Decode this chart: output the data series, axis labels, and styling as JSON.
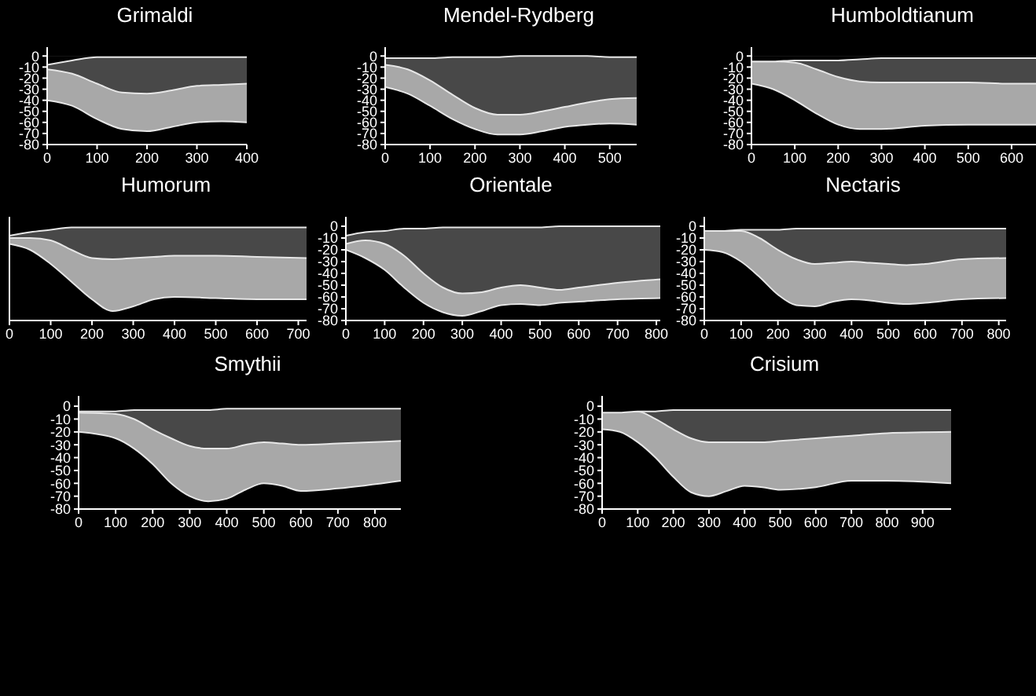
{
  "chart_data": [
    {
      "type": "area",
      "title": "Grimaldi",
      "xlim": [
        0,
        400
      ],
      "xticks": [
        0,
        100,
        200,
        300,
        400
      ],
      "ylim": [
        -80,
        8
      ],
      "yticks": [
        0,
        -10,
        -20,
        -30,
        -40,
        -50,
        -60,
        -70,
        -80
      ],
      "series": [
        {
          "color": "#a8a8a8",
          "x": [
            0,
            50,
            100,
            150,
            200,
            250,
            300,
            350,
            400
          ],
          "values": [
            -40,
            -45,
            -57,
            -66,
            -68,
            -64,
            -60,
            -59,
            -60
          ]
        },
        {
          "color": "#484848",
          "x": [
            0,
            50,
            100,
            150,
            200,
            250,
            300,
            350,
            400
          ],
          "values": [
            -12,
            -16,
            -25,
            -33,
            -34,
            -31,
            -27,
            -26,
            -25
          ]
        },
        {
          "color": "#000000",
          "x": [
            0,
            50,
            100,
            150,
            200,
            250,
            300,
            350,
            400
          ],
          "values": [
            -8,
            -4,
            -1,
            -1,
            -1,
            -1,
            -1,
            -1,
            -1
          ]
        }
      ]
    },
    {
      "type": "area",
      "title": "Mendel-Rydberg",
      "xlim": [
        0,
        560
      ],
      "xticks": [
        0,
        100,
        200,
        300,
        400,
        500
      ],
      "ylim": [
        -80,
        8
      ],
      "yticks": [
        0,
        -10,
        -20,
        -30,
        -40,
        -50,
        -60,
        -70,
        -80
      ],
      "series": [
        {
          "color": "#a8a8a8",
          "x": [
            0,
            50,
            100,
            150,
            200,
            250,
            300,
            350,
            400,
            450,
            500,
            560
          ],
          "values": [
            -28,
            -34,
            -45,
            -57,
            -66,
            -71,
            -71,
            -68,
            -64,
            -62,
            -61,
            -62
          ]
        },
        {
          "color": "#484848",
          "x": [
            0,
            50,
            100,
            150,
            200,
            250,
            300,
            350,
            400,
            450,
            500,
            560
          ],
          "values": [
            -8,
            -12,
            -22,
            -35,
            -47,
            -53,
            -53,
            -50,
            -46,
            -42,
            -39,
            -38
          ]
        },
        {
          "color": "#000000",
          "x": [
            0,
            50,
            100,
            150,
            200,
            250,
            300,
            350,
            400,
            450,
            500,
            560
          ],
          "values": [
            -2,
            -2,
            -2,
            -1,
            -1,
            -1,
            0,
            0,
            0,
            0,
            -1,
            -1
          ]
        }
      ]
    },
    {
      "type": "area",
      "title": "Humboldtianum",
      "xlim": [
        0,
        660
      ],
      "xticks": [
        0,
        100,
        200,
        300,
        400,
        500,
        600
      ],
      "ylim": [
        -80,
        8
      ],
      "yticks": [
        0,
        -10,
        -20,
        -30,
        -40,
        -50,
        -60,
        -70,
        -80
      ],
      "series": [
        {
          "color": "#a8a8a8",
          "x": [
            0,
            50,
            100,
            150,
            200,
            250,
            300,
            400,
            500,
            600,
            660
          ],
          "values": [
            -25,
            -30,
            -40,
            -52,
            -62,
            -66,
            -66,
            -63,
            -62,
            -62,
            -62
          ]
        },
        {
          "color": "#484848",
          "x": [
            0,
            50,
            100,
            150,
            200,
            250,
            300,
            400,
            500,
            600,
            660
          ],
          "values": [
            -5,
            -5,
            -6,
            -12,
            -19,
            -23,
            -24,
            -24,
            -24,
            -25,
            -25
          ]
        },
        {
          "color": "#000000",
          "x": [
            0,
            50,
            100,
            150,
            200,
            250,
            300,
            400,
            500,
            600,
            660
          ],
          "values": [
            -5,
            -5,
            -4,
            -4,
            -4,
            -3,
            -2,
            -2,
            -2,
            -2,
            -2
          ]
        }
      ]
    },
    {
      "type": "area",
      "title": "Humorum",
      "xlim": [
        0,
        720
      ],
      "xticks": [
        0,
        100,
        200,
        300,
        400,
        500,
        600,
        700
      ],
      "ylim": [
        -80,
        8
      ],
      "yticks": [
        0,
        -10,
        -20,
        -30,
        -40,
        -50,
        -60,
        -70,
        -80
      ],
      "tick_labels": "x",
      "series": [
        {
          "color": "#a8a8a8",
          "x": [
            0,
            50,
            100,
            150,
            200,
            250,
            300,
            350,
            400,
            500,
            600,
            720
          ],
          "values": [
            -15,
            -20,
            -32,
            -47,
            -62,
            -72,
            -68,
            -62,
            -60,
            -61,
            -62,
            -62
          ]
        },
        {
          "color": "#484848",
          "x": [
            0,
            50,
            100,
            150,
            200,
            250,
            300,
            350,
            400,
            500,
            600,
            720
          ],
          "values": [
            -10,
            -10,
            -12,
            -20,
            -27,
            -28,
            -27,
            -26,
            -25,
            -25,
            -26,
            -27
          ]
        },
        {
          "color": "#000000",
          "x": [
            0,
            50,
            100,
            150,
            200,
            250,
            300,
            350,
            400,
            500,
            600,
            720
          ],
          "values": [
            -8,
            -5,
            -3,
            -1,
            -1,
            -1,
            -1,
            -1,
            -1,
            -1,
            -1,
            -1
          ]
        }
      ]
    },
    {
      "type": "area",
      "title": "Orientale",
      "xlim": [
        0,
        810
      ],
      "xticks": [
        0,
        100,
        200,
        300,
        400,
        500,
        600,
        700,
        800
      ],
      "ylim": [
        -80,
        8
      ],
      "yticks": [
        0,
        -10,
        -20,
        -30,
        -40,
        -50,
        -60,
        -70,
        -80
      ],
      "series": [
        {
          "color": "#a8a8a8",
          "x": [
            0,
            50,
            100,
            150,
            200,
            250,
            300,
            350,
            400,
            450,
            500,
            550,
            600,
            700,
            810
          ],
          "values": [
            -20,
            -27,
            -37,
            -52,
            -65,
            -73,
            -76,
            -72,
            -67,
            -66,
            -67,
            -65,
            -64,
            -62,
            -61
          ]
        },
        {
          "color": "#484848",
          "x": [
            0,
            50,
            100,
            150,
            200,
            250,
            300,
            350,
            400,
            450,
            500,
            550,
            600,
            700,
            810
          ],
          "values": [
            -15,
            -12,
            -15,
            -25,
            -40,
            -52,
            -57,
            -56,
            -52,
            -50,
            -52,
            -54,
            -52,
            -48,
            -45
          ]
        },
        {
          "color": "#000000",
          "x": [
            0,
            50,
            100,
            150,
            200,
            250,
            300,
            350,
            400,
            450,
            500,
            550,
            600,
            700,
            810
          ],
          "values": [
            -8,
            -5,
            -4,
            -2,
            -2,
            -1,
            -1,
            -1,
            -1,
            -1,
            -1,
            0,
            0,
            0,
            0
          ]
        }
      ]
    },
    {
      "type": "area",
      "title": "Nectaris",
      "xlim": [
        0,
        820
      ],
      "xticks": [
        0,
        100,
        200,
        300,
        400,
        500,
        600,
        700,
        800
      ],
      "ylim": [
        -80,
        8
      ],
      "yticks": [
        0,
        -10,
        -20,
        -30,
        -40,
        -50,
        -60,
        -70,
        -80
      ],
      "series": [
        {
          "color": "#a8a8a8",
          "x": [
            0,
            50,
            100,
            150,
            200,
            250,
            300,
            350,
            400,
            450,
            500,
            550,
            600,
            700,
            820
          ],
          "values": [
            -20,
            -22,
            -30,
            -43,
            -58,
            -67,
            -68,
            -64,
            -62,
            -63,
            -65,
            -66,
            -65,
            -62,
            -61
          ]
        },
        {
          "color": "#484848",
          "x": [
            0,
            50,
            100,
            150,
            200,
            250,
            300,
            350,
            400,
            450,
            500,
            550,
            600,
            700,
            820
          ],
          "values": [
            -4,
            -4,
            -4,
            -10,
            -20,
            -28,
            -32,
            -31,
            -30,
            -31,
            -32,
            -33,
            -32,
            -28,
            -27
          ]
        },
        {
          "color": "#000000",
          "x": [
            0,
            50,
            100,
            150,
            200,
            250,
            300,
            350,
            400,
            450,
            500,
            550,
            600,
            700,
            820
          ],
          "values": [
            -4,
            -4,
            -3,
            -3,
            -3,
            -2,
            -2,
            -2,
            -2,
            -2,
            -2,
            -2,
            -2,
            -2,
            -2
          ]
        }
      ]
    },
    {
      "type": "area",
      "title": "Smythii",
      "xlim": [
        0,
        870
      ],
      "xticks": [
        0,
        100,
        200,
        300,
        400,
        500,
        600,
        700,
        800
      ],
      "ylim": [
        -80,
        8
      ],
      "yticks": [
        0,
        -10,
        -20,
        -30,
        -40,
        -50,
        -60,
        -70,
        -80
      ],
      "series": [
        {
          "color": "#a8a8a8",
          "x": [
            0,
            100,
            150,
            200,
            250,
            300,
            350,
            400,
            450,
            500,
            550,
            600,
            700,
            870
          ],
          "values": [
            -20,
            -25,
            -33,
            -45,
            -60,
            -70,
            -74,
            -72,
            -65,
            -60,
            -62,
            -66,
            -64,
            -58
          ]
        },
        {
          "color": "#484848",
          "x": [
            0,
            100,
            150,
            200,
            250,
            300,
            350,
            400,
            450,
            500,
            550,
            600,
            700,
            870
          ],
          "values": [
            -5,
            -6,
            -10,
            -18,
            -25,
            -31,
            -33,
            -33,
            -30,
            -28,
            -29,
            -30,
            -29,
            -27
          ]
        },
        {
          "color": "#000000",
          "x": [
            0,
            100,
            150,
            200,
            250,
            300,
            350,
            400,
            450,
            500,
            550,
            600,
            700,
            870
          ],
          "values": [
            -4,
            -4,
            -3,
            -3,
            -3,
            -3,
            -3,
            -2,
            -2,
            -2,
            -2,
            -2,
            -2,
            -2
          ]
        }
      ]
    },
    {
      "type": "area",
      "title": "Crisium",
      "xlim": [
        0,
        980
      ],
      "xticks": [
        0,
        100,
        200,
        300,
        400,
        500,
        600,
        700,
        800,
        900
      ],
      "ylim": [
        -80,
        8
      ],
      "yticks": [
        0,
        -10,
        -20,
        -30,
        -40,
        -50,
        -60,
        -70,
        -80
      ],
      "series": [
        {
          "color": "#a8a8a8",
          "x": [
            0,
            50,
            100,
            150,
            200,
            250,
            300,
            350,
            400,
            450,
            500,
            600,
            700,
            800,
            980
          ],
          "values": [
            -18,
            -20,
            -28,
            -40,
            -55,
            -67,
            -70,
            -66,
            -62,
            -63,
            -65,
            -63,
            -58,
            -58,
            -60
          ]
        },
        {
          "color": "#484848",
          "x": [
            0,
            50,
            100,
            150,
            200,
            250,
            300,
            350,
            400,
            450,
            500,
            600,
            700,
            800,
            980
          ],
          "values": [
            -4,
            -4,
            -4,
            -10,
            -18,
            -25,
            -28,
            -28,
            -28,
            -28,
            -27,
            -25,
            -23,
            -21,
            -20
          ]
        },
        {
          "color": "#000000",
          "x": [
            0,
            50,
            100,
            150,
            200,
            250,
            300,
            350,
            400,
            450,
            500,
            600,
            700,
            800,
            980
          ],
          "values": [
            -5,
            -5,
            -4,
            -4,
            -3,
            -3,
            -3,
            -3,
            -3,
            -3,
            -3,
            -3,
            -3,
            -3,
            -3
          ]
        }
      ]
    }
  ]
}
